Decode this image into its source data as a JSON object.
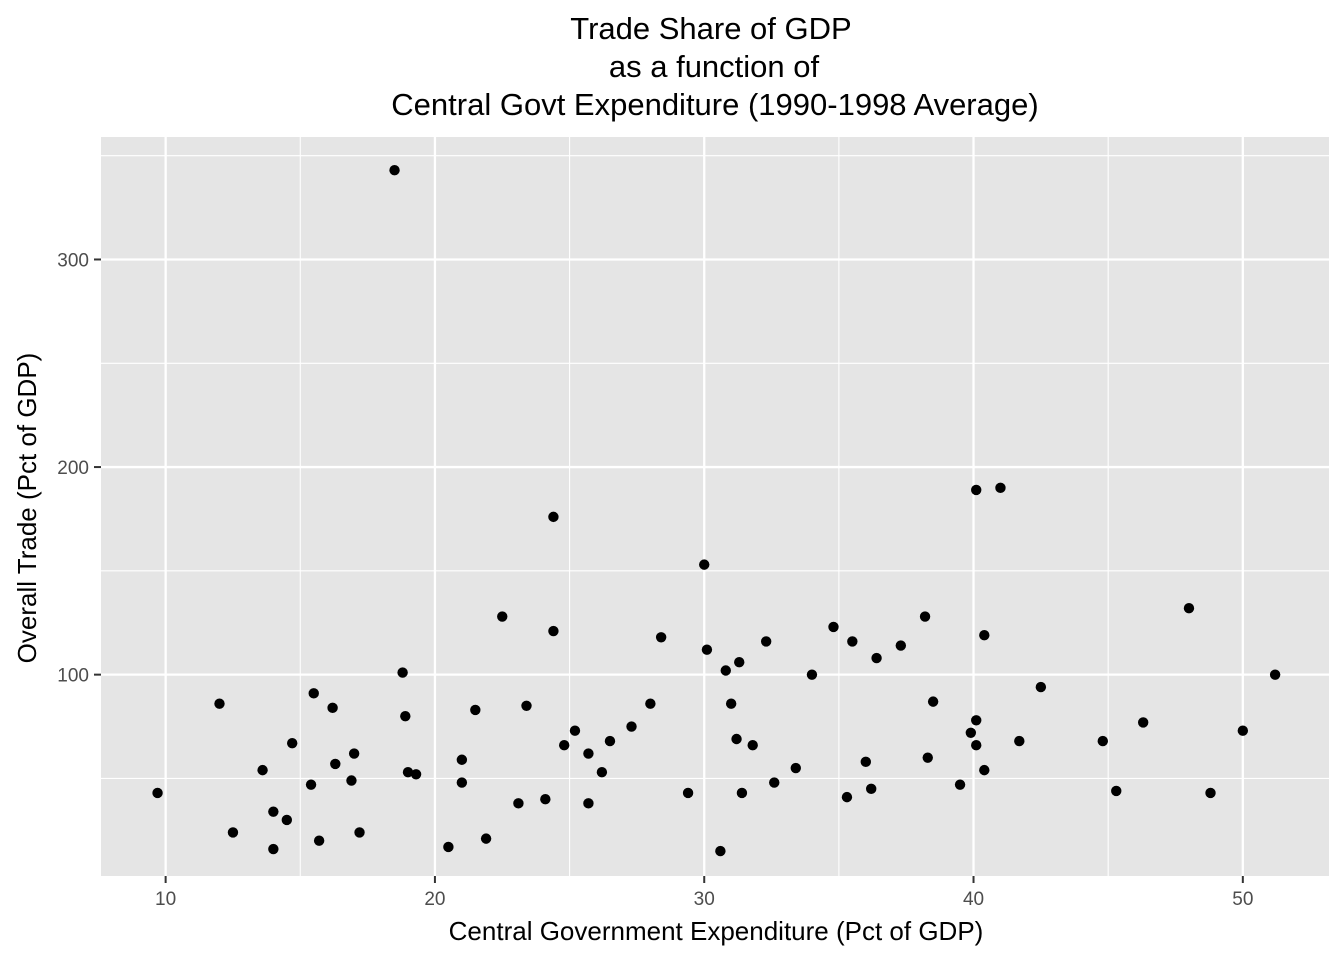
{
  "chart_data": {
    "type": "scatter",
    "title_lines": [
      "Trade Share of GDP",
      "as a function of",
      "Central Govt Expenditure (1990-1998 Average)"
    ],
    "xlabel": "Central Government Expenditure (Pct of GDP)",
    "ylabel": "Overall Trade (Pct of GDP)",
    "xlim": [
      7.6,
      53.2
    ],
    "ylim": [
      3,
      359
    ],
    "x_ticks": [
      10,
      20,
      30,
      40,
      50
    ],
    "y_ticks": [
      100,
      200,
      300
    ],
    "x_minor": [
      15,
      25,
      35,
      45
    ],
    "y_minor": [
      50,
      150,
      250,
      350
    ],
    "grid": true,
    "legend": "none",
    "colors": {
      "panel": "#e5e5e5",
      "grid": "#ffffff",
      "point": "#000000",
      "tick_label": "#4d4d4d"
    },
    "points": [
      {
        "x": 9.7,
        "y": 43
      },
      {
        "x": 12.0,
        "y": 86
      },
      {
        "x": 12.5,
        "y": 24
      },
      {
        "x": 13.6,
        "y": 54
      },
      {
        "x": 14.0,
        "y": 34
      },
      {
        "x": 14.0,
        "y": 16
      },
      {
        "x": 14.5,
        "y": 30
      },
      {
        "x": 14.7,
        "y": 67
      },
      {
        "x": 15.4,
        "y": 47
      },
      {
        "x": 15.5,
        "y": 91
      },
      {
        "x": 15.7,
        "y": 20
      },
      {
        "x": 16.2,
        "y": 84
      },
      {
        "x": 16.3,
        "y": 57
      },
      {
        "x": 16.9,
        "y": 49
      },
      {
        "x": 17.0,
        "y": 62
      },
      {
        "x": 17.2,
        "y": 24
      },
      {
        "x": 18.5,
        "y": 343
      },
      {
        "x": 18.8,
        "y": 101
      },
      {
        "x": 18.9,
        "y": 80
      },
      {
        "x": 19.0,
        "y": 53
      },
      {
        "x": 19.3,
        "y": 52
      },
      {
        "x": 20.5,
        "y": 17
      },
      {
        "x": 21.0,
        "y": 59
      },
      {
        "x": 21.0,
        "y": 48
      },
      {
        "x": 21.5,
        "y": 83
      },
      {
        "x": 21.9,
        "y": 21
      },
      {
        "x": 22.5,
        "y": 128
      },
      {
        "x": 23.1,
        "y": 38
      },
      {
        "x": 23.4,
        "y": 85
      },
      {
        "x": 24.1,
        "y": 40
      },
      {
        "x": 24.4,
        "y": 121
      },
      {
        "x": 24.4,
        "y": 176
      },
      {
        "x": 24.8,
        "y": 66
      },
      {
        "x": 25.2,
        "y": 73
      },
      {
        "x": 25.7,
        "y": 62
      },
      {
        "x": 25.7,
        "y": 38
      },
      {
        "x": 26.2,
        "y": 53
      },
      {
        "x": 26.5,
        "y": 68
      },
      {
        "x": 27.3,
        "y": 75
      },
      {
        "x": 28.0,
        "y": 86
      },
      {
        "x": 28.4,
        "y": 118
      },
      {
        "x": 29.4,
        "y": 43
      },
      {
        "x": 30.0,
        "y": 153
      },
      {
        "x": 30.1,
        "y": 112
      },
      {
        "x": 30.6,
        "y": 15
      },
      {
        "x": 30.8,
        "y": 102
      },
      {
        "x": 31.0,
        "y": 86
      },
      {
        "x": 31.2,
        "y": 69
      },
      {
        "x": 31.3,
        "y": 106
      },
      {
        "x": 31.4,
        "y": 43
      },
      {
        "x": 31.8,
        "y": 66
      },
      {
        "x": 32.3,
        "y": 116
      },
      {
        "x": 32.6,
        "y": 48
      },
      {
        "x": 33.4,
        "y": 55
      },
      {
        "x": 34.0,
        "y": 100
      },
      {
        "x": 34.8,
        "y": 123
      },
      {
        "x": 35.3,
        "y": 41
      },
      {
        "x": 35.5,
        "y": 116
      },
      {
        "x": 36.0,
        "y": 58
      },
      {
        "x": 36.2,
        "y": 45
      },
      {
        "x": 36.4,
        "y": 108
      },
      {
        "x": 37.3,
        "y": 114
      },
      {
        "x": 38.2,
        "y": 128
      },
      {
        "x": 38.3,
        "y": 60
      },
      {
        "x": 38.5,
        "y": 87
      },
      {
        "x": 39.5,
        "y": 47
      },
      {
        "x": 39.9,
        "y": 72
      },
      {
        "x": 40.1,
        "y": 78
      },
      {
        "x": 40.1,
        "y": 66
      },
      {
        "x": 40.1,
        "y": 189
      },
      {
        "x": 40.4,
        "y": 119
      },
      {
        "x": 40.4,
        "y": 54
      },
      {
        "x": 41.0,
        "y": 190
      },
      {
        "x": 41.7,
        "y": 68
      },
      {
        "x": 42.5,
        "y": 94
      },
      {
        "x": 44.8,
        "y": 68
      },
      {
        "x": 45.3,
        "y": 44
      },
      {
        "x": 46.3,
        "y": 77
      },
      {
        "x": 48.0,
        "y": 132
      },
      {
        "x": 48.8,
        "y": 43
      },
      {
        "x": 50.0,
        "y": 73
      },
      {
        "x": 51.2,
        "y": 100
      }
    ]
  }
}
